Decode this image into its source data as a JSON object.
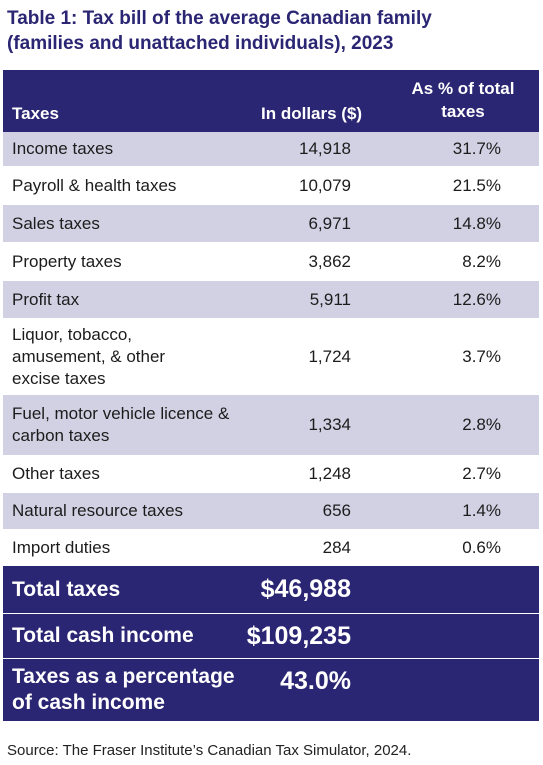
{
  "title": {
    "line1": "Table 1: Tax bill of the average Canadian family",
    "line2": "(families and unattached individuals), 2023"
  },
  "columns": {
    "taxes": "Taxes",
    "dollars": "In dollars ($)",
    "pct_line1": "As % of total",
    "pct_line2": "taxes"
  },
  "rows": [
    {
      "name": "Income taxes",
      "dollars": "14,918",
      "pct": "31.7%"
    },
    {
      "name": "Payroll & health taxes",
      "dollars": "10,079",
      "pct": "21.5%"
    },
    {
      "name": "Sales taxes",
      "dollars": "6,971",
      "pct": "14.8%"
    },
    {
      "name": "Property taxes",
      "dollars": "3,862",
      "pct": "8.2%"
    },
    {
      "name": "Profit tax",
      "dollars": "5,911",
      "pct": "12.6%"
    },
    {
      "name": "Liquor, tobacco, amusement, & other excise taxes",
      "dollars": "1,724",
      "pct": "3.7%"
    },
    {
      "name": "Fuel, motor vehicle licence & carbon taxes",
      "dollars": "1,334",
      "pct": "2.8%"
    },
    {
      "name": "Other taxes",
      "dollars": "1,248",
      "pct": "2.7%"
    },
    {
      "name": "Natural resource taxes",
      "dollars": "656",
      "pct": "1.4%"
    },
    {
      "name": "Import duties",
      "dollars": "284",
      "pct": "0.6%"
    }
  ],
  "totals": [
    {
      "label": "Total taxes",
      "value": "$46,988"
    },
    {
      "label": "Total cash income",
      "value": "$109,235"
    },
    {
      "label": "Taxes as a percentage of cash income",
      "value": "43.0%"
    }
  ],
  "source": "Source: The Fraser Institute’s Canadian Tax Simulator, 2024.",
  "colors": {
    "header_bg": "#2b2673",
    "row_shade": "#d2d0e3",
    "title": "#2b2673"
  }
}
